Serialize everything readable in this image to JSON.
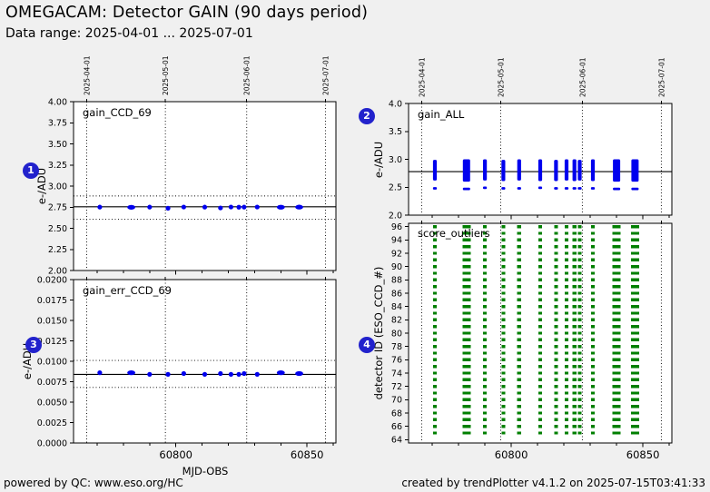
{
  "header": {
    "title": "OMEGACAM: Detector GAIN (90 days period)",
    "subtitle": "Data range: 2025-04-01 ... 2025-07-01"
  },
  "footer": {
    "left": "powered by QC: www.eso.org/HC",
    "right": "created by trendPlotter v4.1.2 on 2025-07-15T03:41:33"
  },
  "badges": [
    {
      "label": "1"
    },
    {
      "label": "2"
    },
    {
      "label": "3"
    },
    {
      "label": "4"
    }
  ],
  "colors": {
    "background": "#f0f0f0",
    "plot_background": "#ffffff",
    "point_blue": "#0000ee",
    "outlier_green": "#007f00",
    "badge_blue": "#2222cc",
    "axis_black": "#000000"
  },
  "chart_data": {
    "x_axis": {
      "label": "MJD-OBS",
      "xlim": [
        60761,
        60861
      ],
      "major_ticks": [
        60800,
        60850
      ],
      "minor_ticks": [
        60770,
        60780,
        60790,
        60800,
        60810,
        60820,
        60830,
        60840,
        60850,
        60860
      ],
      "month_lines": [
        {
          "mjd": 60766,
          "label": "2025-04-01"
        },
        {
          "mjd": 60796,
          "label": "2025-05-01"
        },
        {
          "mjd": 60827,
          "label": "2025-06-01"
        },
        {
          "mjd": 60857,
          "label": "2025-07-01"
        }
      ]
    },
    "plots": [
      {
        "id": "gain_CCD_69",
        "type": "scatter",
        "annotation": "gain_CCD_69",
        "ylabel": "e-/ADU",
        "ylim": [
          2.0,
          4.0
        ],
        "yticks": [
          {
            "v": 4.0,
            "label": "4.00"
          },
          {
            "v": 3.75,
            "label": "3.75"
          },
          {
            "v": 3.5,
            "label": "3.50"
          },
          {
            "v": 3.25,
            "label": "3.25"
          },
          {
            "v": 3.0,
            "label": "3.00"
          },
          {
            "v": 2.75,
            "label": "2.75"
          },
          {
            "v": 2.5,
            "label": "2.50"
          },
          {
            "v": 2.25,
            "label": "2.25"
          },
          {
            "v": 2.0,
            "label": "2.00"
          }
        ],
        "center_line": 2.755,
        "thresholds": [
          2.883,
          2.607
        ],
        "points": [
          {
            "x": 60771,
            "y": 2.751,
            "d": 1
          },
          {
            "x": 60783,
            "y": 2.749,
            "d": 3
          },
          {
            "x": 60790,
            "y": 2.751,
            "d": 1
          },
          {
            "x": 60797,
            "y": 2.738,
            "d": 1
          },
          {
            "x": 60803,
            "y": 2.752,
            "d": 1
          },
          {
            "x": 60811,
            "y": 2.751,
            "d": 1
          },
          {
            "x": 60817,
            "y": 2.741,
            "d": 1
          },
          {
            "x": 60821,
            "y": 2.752,
            "d": 1
          },
          {
            "x": 60824,
            "y": 2.75,
            "d": 1
          },
          {
            "x": 60826,
            "y": 2.751,
            "d": 1
          },
          {
            "x": 60831,
            "y": 2.752,
            "d": 1
          },
          {
            "x": 60840,
            "y": 2.75,
            "d": 3
          },
          {
            "x": 60847,
            "y": 2.751,
            "d": 3
          }
        ]
      },
      {
        "id": "gain_ALL",
        "type": "scatter",
        "annotation": "gain_ALL",
        "ylabel": "e-/ADU",
        "ylim": [
          2.0,
          4.0
        ],
        "yticks": [
          {
            "v": 4.0,
            "label": "4.0"
          },
          {
            "v": 3.5,
            "label": "3.5"
          },
          {
            "v": 3.0,
            "label": "3.0"
          },
          {
            "v": 2.5,
            "label": "2.5"
          },
          {
            "v": 2.0,
            "label": "2.0"
          }
        ],
        "center_line": 2.78,
        "thresholds": [],
        "stripes": [
          {
            "x": 60771,
            "lo": 2.62,
            "hi": 2.99,
            "outlier": 2.48,
            "d": 1
          },
          {
            "x": 60783,
            "lo": 2.6,
            "hi": 3.0,
            "outlier": 2.47,
            "d": 3
          },
          {
            "x": 60790,
            "lo": 2.62,
            "hi": 3.0,
            "outlier": 2.49,
            "d": 1
          },
          {
            "x": 60797,
            "lo": 2.61,
            "hi": 2.99,
            "outlier": 2.48,
            "d": 1
          },
          {
            "x": 60803,
            "lo": 2.62,
            "hi": 3.0,
            "outlier": 2.48,
            "d": 1
          },
          {
            "x": 60811,
            "lo": 2.61,
            "hi": 3.0,
            "outlier": 2.49,
            "d": 1
          },
          {
            "x": 60817,
            "lo": 2.61,
            "hi": 2.99,
            "outlier": 2.48,
            "d": 1
          },
          {
            "x": 60821,
            "lo": 2.62,
            "hi": 3.0,
            "outlier": 2.48,
            "d": 1
          },
          {
            "x": 60824,
            "lo": 2.61,
            "hi": 3.0,
            "outlier": 2.48,
            "d": 1
          },
          {
            "x": 60826,
            "lo": 2.62,
            "hi": 2.99,
            "outlier": 2.48,
            "d": 1
          },
          {
            "x": 60831,
            "lo": 2.61,
            "hi": 3.0,
            "outlier": 2.48,
            "d": 1
          },
          {
            "x": 60840,
            "lo": 2.6,
            "hi": 3.0,
            "outlier": 2.47,
            "d": 3
          },
          {
            "x": 60847,
            "lo": 2.6,
            "hi": 3.0,
            "outlier": 2.47,
            "d": 3
          }
        ]
      },
      {
        "id": "gain_err_CCD_69",
        "type": "scatter",
        "annotation": "gain_err_CCD_69",
        "ylabel": "e-/ADU",
        "ylim": [
          0.0,
          0.02
        ],
        "yticks": [
          {
            "v": 0.02,
            "label": "0.0200"
          },
          {
            "v": 0.0175,
            "label": "0.0175"
          },
          {
            "v": 0.015,
            "label": "0.0150"
          },
          {
            "v": 0.0125,
            "label": "0.0125"
          },
          {
            "v": 0.01,
            "label": "0.0100"
          },
          {
            "v": 0.0075,
            "label": "0.0075"
          },
          {
            "v": 0.005,
            "label": "0.0050"
          },
          {
            "v": 0.0025,
            "label": "0.0025"
          },
          {
            "v": 0.0,
            "label": "0.0000"
          }
        ],
        "center_line": 0.0084,
        "thresholds": [
          0.0101,
          0.0068
        ],
        "points": [
          {
            "x": 60771,
            "y": 0.0086,
            "d": 1
          },
          {
            "x": 60783,
            "y": 0.0086,
            "d": 3
          },
          {
            "x": 60790,
            "y": 0.0084,
            "d": 1
          },
          {
            "x": 60797,
            "y": 0.0084,
            "d": 1
          },
          {
            "x": 60803,
            "y": 0.0085,
            "d": 1
          },
          {
            "x": 60811,
            "y": 0.0084,
            "d": 1
          },
          {
            "x": 60817,
            "y": 0.0085,
            "d": 1
          },
          {
            "x": 60821,
            "y": 0.0084,
            "d": 1
          },
          {
            "x": 60824,
            "y": 0.0084,
            "d": 1
          },
          {
            "x": 60826,
            "y": 0.0085,
            "d": 1
          },
          {
            "x": 60831,
            "y": 0.0084,
            "d": 1
          },
          {
            "x": 60840,
            "y": 0.0086,
            "d": 3
          },
          {
            "x": 60847,
            "y": 0.0085,
            "d": 3
          }
        ]
      },
      {
        "id": "score_outliers",
        "type": "scatter",
        "annotation": "score_outliers",
        "ylabel": "detector ID (ESO_CCD_#)",
        "ylim": [
          63.5,
          96.5
        ],
        "yticks": [
          {
            "v": 96,
            "label": "96"
          },
          {
            "v": 94,
            "label": "94"
          },
          {
            "v": 92,
            "label": "92"
          },
          {
            "v": 90,
            "label": "90"
          },
          {
            "v": 88,
            "label": "88"
          },
          {
            "v": 86,
            "label": "86"
          },
          {
            "v": 84,
            "label": "84"
          },
          {
            "v": 82,
            "label": "82"
          },
          {
            "v": 80,
            "label": "80"
          },
          {
            "v": 78,
            "label": "78"
          },
          {
            "v": 76,
            "label": "76"
          },
          {
            "v": 74,
            "label": "74"
          },
          {
            "v": 72,
            "label": "72"
          },
          {
            "v": 70,
            "label": "70"
          },
          {
            "v": 68,
            "label": "68"
          },
          {
            "v": 66,
            "label": "66"
          },
          {
            "v": 64,
            "label": "64"
          }
        ],
        "detectors": {
          "min": 65,
          "max": 96,
          "step": 1
        },
        "clusters": [
          {
            "x": 60771,
            "d": 1
          },
          {
            "x": 60783,
            "d": 3
          },
          {
            "x": 60790,
            "d": 1
          },
          {
            "x": 60797,
            "d": 1
          },
          {
            "x": 60803,
            "d": 1
          },
          {
            "x": 60811,
            "d": 1
          },
          {
            "x": 60817,
            "d": 1
          },
          {
            "x": 60821,
            "d": 1
          },
          {
            "x": 60824,
            "d": 1
          },
          {
            "x": 60826,
            "d": 1
          },
          {
            "x": 60831,
            "d": 1
          },
          {
            "x": 60840,
            "d": 3
          },
          {
            "x": 60847,
            "d": 3
          }
        ]
      }
    ]
  }
}
